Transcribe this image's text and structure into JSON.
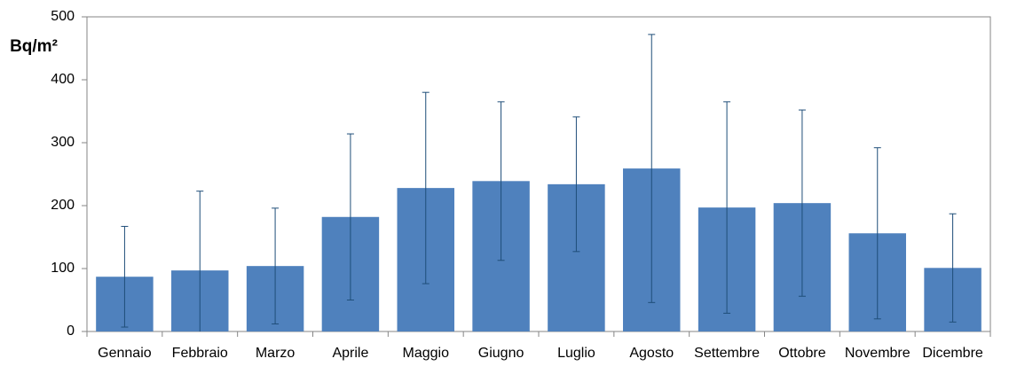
{
  "chart_data": {
    "type": "bar",
    "y_label": "Bq/m²",
    "categories": [
      "Gennaio",
      "Febbraio",
      "Marzo",
      "Aprile",
      "Maggio",
      "Giugno",
      "Luglio",
      "Agosto",
      "Settembre",
      "Ottobre",
      "Novembre",
      "Dicembre"
    ],
    "values": [
      87,
      97,
      104,
      182,
      228,
      239,
      234,
      259,
      197,
      204,
      156,
      101
    ],
    "errors": [
      80,
      126,
      92,
      132,
      152,
      126,
      107,
      213,
      168,
      148,
      136,
      86
    ],
    "color": "#4f81bd",
    "error_color": "#1f4e79",
    "ylim": [
      0,
      500
    ],
    "yticks": [
      0,
      100,
      200,
      300,
      400,
      500
    ],
    "grid": false
  }
}
